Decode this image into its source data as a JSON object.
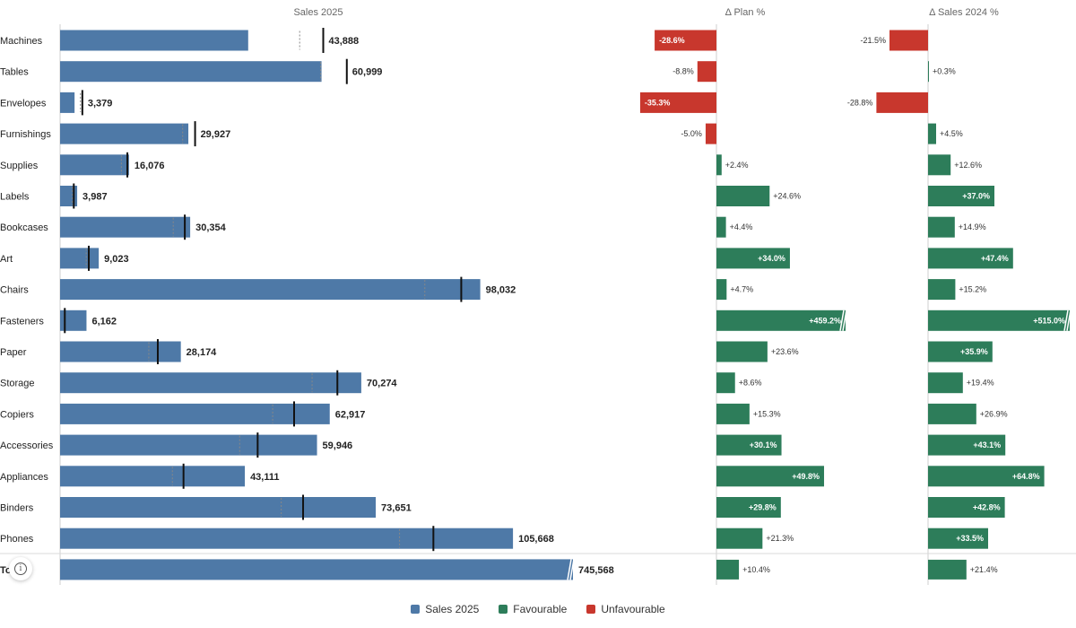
{
  "chart_data": {
    "type": "bar",
    "columns": {
      "sales": "Sales 2025",
      "plan": "Δ Plan %",
      "prev": "Δ Sales 2024 %"
    },
    "categories": [
      "Machines",
      "Tables",
      "Envelopes",
      "Furnishings",
      "Supplies",
      "Labels",
      "Bookcases",
      "Art",
      "Chairs",
      "Fasteners",
      "Paper",
      "Storage",
      "Copiers",
      "Accessories",
      "Appliances",
      "Binders",
      "Phones",
      "Total"
    ],
    "series": [
      {
        "name": "Sales 2025",
        "values": [
          43888,
          60999,
          3379,
          29927,
          16076,
          3987,
          30354,
          9023,
          98032,
          6162,
          28174,
          70274,
          62917,
          59946,
          43111,
          73651,
          105668,
          745568
        ],
        "labels": [
          "43,888",
          "60,999",
          "3,379",
          "29,927",
          "16,076",
          "3,987",
          "30,354",
          "9,023",
          "98,032",
          "6,162",
          "28,174",
          "70,274",
          "62,917",
          "59,946",
          "43,111",
          "73,651",
          "105,668",
          "745,568"
        ]
      }
    ],
    "plan_values": [
      61400,
      66900,
      5200,
      31500,
      15700,
      3200,
      29100,
      6700,
      93600,
      1100,
      22800,
      64700,
      54600,
      46100,
      28800,
      56700,
      87100
    ],
    "prev_values": [
      55900,
      60800,
      4750,
      28600,
      14300,
      2900,
      26400,
      6100,
      85100,
      1000,
      20700,
      58800,
      49600,
      41900,
      26200,
      51600,
      79200
    ],
    "delta_plan": {
      "values": [
        -28.6,
        -8.8,
        -35.3,
        -5.0,
        2.4,
        24.6,
        4.4,
        34.0,
        4.7,
        459.2,
        23.6,
        8.6,
        15.3,
        30.1,
        49.8,
        29.8,
        21.3,
        10.4
      ],
      "labels": [
        "-28.6%",
        "-8.8%",
        "-35.3%",
        "-5.0%",
        "+2.4%",
        "+24.6%",
        "+4.4%",
        "+34.0%",
        "+4.7%",
        "+459.2%",
        "+23.6%",
        "+8.6%",
        "+15.3%",
        "+30.1%",
        "+49.8%",
        "+29.8%",
        "+21.3%",
        "+10.4%"
      ]
    },
    "delta_prev": {
      "values": [
        -21.5,
        0.3,
        -28.8,
        4.5,
        12.6,
        37.0,
        14.9,
        47.4,
        15.2,
        515.0,
        35.9,
        19.4,
        26.9,
        43.1,
        64.8,
        42.8,
        33.5,
        21.4
      ],
      "labels": [
        "-21.5%",
        "+0.3%",
        "-28.8%",
        "+4.5%",
        "+12.6%",
        "+37.0%",
        "+14.9%",
        "+47.4%",
        "+15.2%",
        "+515.0%",
        "+35.9%",
        "+19.4%",
        "+26.9%",
        "+43.1%",
        "+64.8%",
        "+42.8%",
        "+33.5%",
        "+21.4%"
      ]
    },
    "legend": [
      "Sales 2025",
      "Favourable",
      "Unfavourable"
    ],
    "colors": {
      "sales": "#4e79a7",
      "favourable": "#2d7d5a",
      "unfavourable": "#c8372d"
    },
    "legend_position": "bottom"
  }
}
